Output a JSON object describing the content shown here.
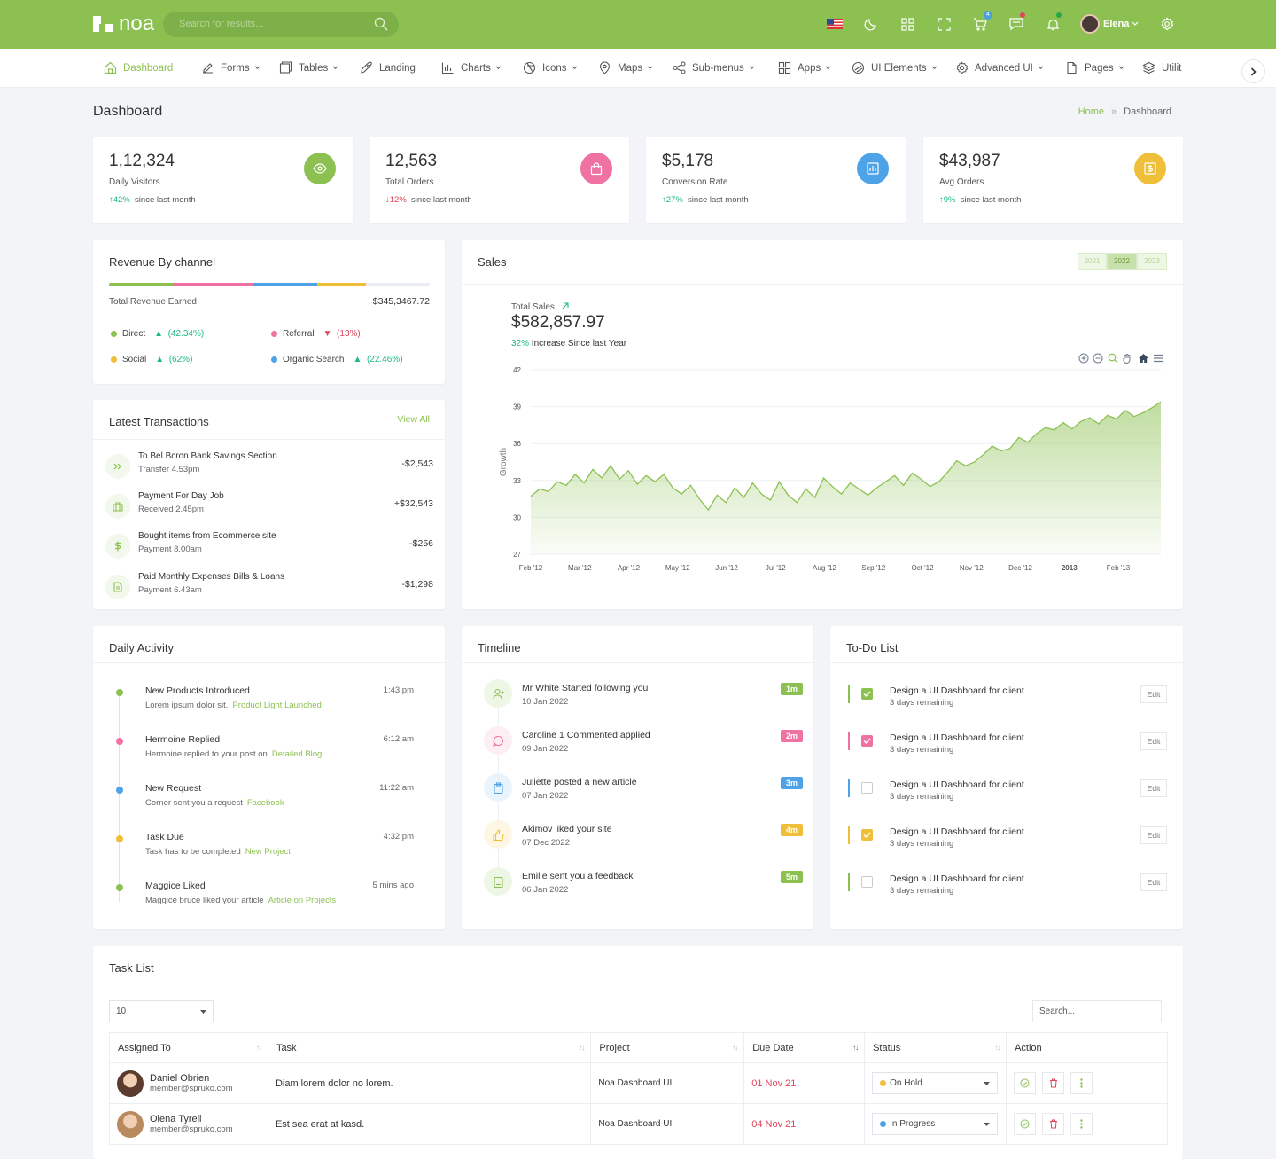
{
  "topbar": {
    "logo_text": "noa",
    "search_placeholder": "Search for results...",
    "cart_count": "4",
    "user_name": "Elena"
  },
  "nav": {
    "items": [
      {
        "label": "Dashboard",
        "icon": "home-icon"
      },
      {
        "label": "Forms",
        "icon": "edit-icon"
      },
      {
        "label": "Tables",
        "icon": "table-icon"
      },
      {
        "label": "Landing",
        "icon": "rocket-icon"
      },
      {
        "label": "Charts",
        "icon": "bar-chart-icon"
      },
      {
        "label": "Icons",
        "icon": "aperture-icon"
      },
      {
        "label": "Maps",
        "icon": "map-pin-icon"
      },
      {
        "label": "Sub-menus",
        "icon": "share-icon"
      },
      {
        "label": "Apps",
        "icon": "grid-icon"
      },
      {
        "label": "UI Elements",
        "icon": "disc-icon"
      },
      {
        "label": "Advanced UI",
        "icon": "settings-icon"
      },
      {
        "label": "Pages",
        "icon": "file-icon"
      },
      {
        "label": "Utilit",
        "icon": "layers-icon"
      }
    ]
  },
  "page": {
    "title": "Dashboard",
    "breadcrumb_home": "Home",
    "breadcrumb_sep": "»",
    "breadcrumb_current": "Dashboard"
  },
  "stats": [
    {
      "value": "1,12,324",
      "label": "Daily Visitors",
      "trend_arrow": "↑",
      "trend": "42%",
      "suffix": "since last month",
      "direction": "up",
      "color": "#8cc152",
      "icon": "eye-icon"
    },
    {
      "value": "12,563",
      "label": "Total Orders",
      "trend_arrow": "↓",
      "trend": "12%",
      "suffix": "since last month",
      "direction": "down",
      "color": "#ef72a2",
      "icon": "shopping-bag-icon"
    },
    {
      "value": "$5,178",
      "label": "Conversion Rate",
      "trend_arrow": "↑",
      "trend": "27%",
      "suffix": "since last month",
      "direction": "up",
      "color": "#4ea3e8",
      "icon": "chart-icon"
    },
    {
      "value": "$43,987",
      "label": "Avg Orders",
      "trend_arrow": "↑",
      "trend": "9%",
      "suffix": "since last month",
      "direction": "up",
      "color": "#f0bf3a",
      "icon": "dollar-box-icon"
    }
  ],
  "revenue": {
    "title": "Revenue By channel",
    "earned_label": "Total Revenue Earned",
    "earned_value": "$345,3467.72",
    "segments": [
      {
        "color": "#8cc152",
        "share": 0.2
      },
      {
        "color": "#ef72a2",
        "share": 0.25
      },
      {
        "color": "#4ea3e8",
        "share": 0.2
      },
      {
        "color": "#f0bf3a",
        "share": 0.15
      },
      {
        "color": "#e9ecf2",
        "share": 0.2
      }
    ],
    "channels": [
      {
        "name": "Direct",
        "color": "#8cc152",
        "arrow": "▲",
        "pct": "(42.34%)",
        "dir": "up"
      },
      {
        "name": "Referral",
        "color": "#ef72a2",
        "arrow": "▼",
        "pct": "(13%)",
        "dir": "down"
      },
      {
        "name": "Social",
        "color": "#f0bf3a",
        "arrow": "▲",
        "pct": "(62%)",
        "dir": "up"
      },
      {
        "name": "Organic Search",
        "color": "#4ea3e8",
        "arrow": "▲",
        "pct": "(22.46%)",
        "dir": "up"
      }
    ]
  },
  "transactions": {
    "title": "Latest Transactions",
    "view_all": "View All",
    "items": [
      {
        "title": "To Bel Bcron Bank Savings Section",
        "sub": "Transfer 4.53pm",
        "amount": "-$2,543",
        "icon": "double-chevron-icon"
      },
      {
        "title": "Payment For  Day Job",
        "sub": "Received 2.45pm",
        "amount": "+$32,543",
        "icon": "briefcase-icon"
      },
      {
        "title": "Bought items from Ecommerce site",
        "sub": "Payment 8.00am",
        "amount": "-$256",
        "icon": "dollar-icon"
      },
      {
        "title": "Paid Monthly Expenses Bills & Loans",
        "sub": "Payment 6.43am",
        "amount": "-$1,298",
        "icon": "document-icon"
      }
    ]
  },
  "sales": {
    "title": "Sales",
    "years": [
      "2021",
      "2022",
      "2023"
    ],
    "active_year": "2022",
    "total_label": "Total Sales",
    "total_value": "$582,857.97",
    "increase_pct": "32%",
    "increase_text": "Increase Since last Year"
  },
  "chart_data": {
    "type": "area",
    "title": "",
    "xlabel": "",
    "ylabel": "Growth",
    "ylim": [
      27,
      42
    ],
    "yticks": [
      27,
      30,
      33,
      36,
      39,
      42
    ],
    "xticks": [
      "Feb '12",
      "Mar '12",
      "Apr '12",
      "May '12",
      "Jun '12",
      "Jul '12",
      "Aug '12",
      "Sep '12",
      "Oct '12",
      "Nov '12",
      "Dec '12",
      "2013",
      "Feb '13"
    ],
    "series": [
      {
        "values": [
          31.7,
          32.3,
          32.1,
          32.9,
          32.6,
          33.5,
          32.8,
          33.9,
          33.2,
          34.2,
          33.1,
          33.8,
          32.7,
          33.4,
          32.9,
          33.5,
          32.4,
          31.9,
          32.6,
          31.5,
          30.6,
          31.8,
          31.2,
          32.4,
          31.6,
          32.8,
          31.9,
          31.4,
          32.9,
          31.8,
          31.2,
          32.3,
          31.6,
          33.2,
          32.5,
          31.9,
          32.8,
          32.3,
          31.8,
          32.4,
          32.9,
          33.4,
          32.6,
          33.6,
          33.1,
          32.5,
          32.9,
          33.7,
          34.6,
          34.2,
          34.5,
          35.1,
          35.8,
          35.4,
          35.6,
          36.5,
          36.1,
          36.8,
          37.3,
          37.1,
          37.7,
          37.2,
          37.8,
          38.1,
          37.6,
          38.3,
          38.0,
          38.7,
          38.2,
          38.5,
          38.9,
          39.4
        ]
      }
    ]
  },
  "activity": {
    "title": "Daily Activity",
    "items": [
      {
        "title": "New Products Introduced",
        "sub": "Lorem ipsum dolor sit.",
        "link": "Product Light Launched",
        "time": "1:43 pm",
        "color": "#8cc152"
      },
      {
        "title": "Hermoine Replied",
        "sub": "Hermoine replied to your post on",
        "link": "Detailed Blog",
        "time": "6:12 am",
        "color": "#ef72a2"
      },
      {
        "title": "New Request",
        "sub": "Corner sent you a request",
        "link": "Facebook",
        "time": "11:22 am",
        "color": "#4ea3e8"
      },
      {
        "title": "Task Due",
        "sub": "Task has to be completed",
        "link": "New Project",
        "time": "4:32 pm",
        "color": "#f0bf3a"
      },
      {
        "title": "Maggice Liked",
        "sub": "Maggice bruce liked your article",
        "link": "Article on Projects",
        "time": "5 mins ago",
        "color": "#8cc152"
      }
    ]
  },
  "timeline": {
    "title": "Timeline",
    "items": [
      {
        "title": "Mr White Started following you",
        "date": "10 Jan 2022",
        "badge": "1m",
        "color": "#8cc152",
        "bg": "#eef6e5",
        "icon": "user-plus-icon"
      },
      {
        "title": "Caroline 1 Commented applied",
        "date": "09 Jan 2022",
        "badge": "2m",
        "color": "#ef72a2",
        "bg": "#fdeef4",
        "icon": "message-icon"
      },
      {
        "title": "Juliette posted a new article",
        "date": "07 Jan 2022",
        "badge": "3m",
        "color": "#4ea3e8",
        "bg": "#eaf4fc",
        "icon": "clipboard-icon"
      },
      {
        "title": "Akimov liked your site",
        "date": "07 Dec 2022",
        "badge": "4m",
        "color": "#f0bf3a",
        "bg": "#fdf6e3",
        "icon": "thumbs-up-icon"
      },
      {
        "title": "Emilie sent you a feedback",
        "date": "06 Jan 2022",
        "badge": "5m",
        "color": "#8cc152",
        "bg": "#eef6e5",
        "icon": "book-icon"
      }
    ]
  },
  "todo": {
    "title": "To-Do List",
    "edit_label": "Edit",
    "items": [
      {
        "title": "Design a UI Dashboard for client",
        "sub": "3 days remaining",
        "checked": true,
        "color": "#8cc152"
      },
      {
        "title": "Design a UI Dashboard for client",
        "sub": "3 days remaining",
        "checked": true,
        "color": "#ef72a2"
      },
      {
        "title": "Design a UI Dashboard for client",
        "sub": "3 days remaining",
        "checked": false,
        "color": "#4ea3e8"
      },
      {
        "title": "Design a UI Dashboard for client",
        "sub": "3 days remaining",
        "checked": true,
        "color": "#f0bf3a"
      },
      {
        "title": "Design a UI Dashboard for client",
        "sub": "3 days remaining",
        "checked": false,
        "color": "#8cc152"
      }
    ]
  },
  "tasklist": {
    "title": "Task List",
    "page_size": "10",
    "search_placeholder": "Search...",
    "columns": [
      "Assigned To",
      "Task",
      "Project",
      "Due Date",
      "Status",
      "Action"
    ],
    "rows": [
      {
        "name": "Daniel Obrien",
        "email": "member@spruko.com",
        "task": "Diam lorem dolor no lorem.",
        "project": "Noa Dashboard UI",
        "due": "01 Nov 21",
        "status": "On Hold",
        "status_color": "#f0bf3a",
        "avatar_color": "#5a3b2e"
      },
      {
        "name": "Olena Tyrell",
        "email": "member@spruko.com",
        "task": "Est sea erat at kasd.",
        "project": "Noa Dashboard UI",
        "due": "04 Nov 21",
        "status": "In Progress",
        "status_color": "#4ea3e8",
        "avatar_color": "#b88a5e"
      }
    ]
  }
}
